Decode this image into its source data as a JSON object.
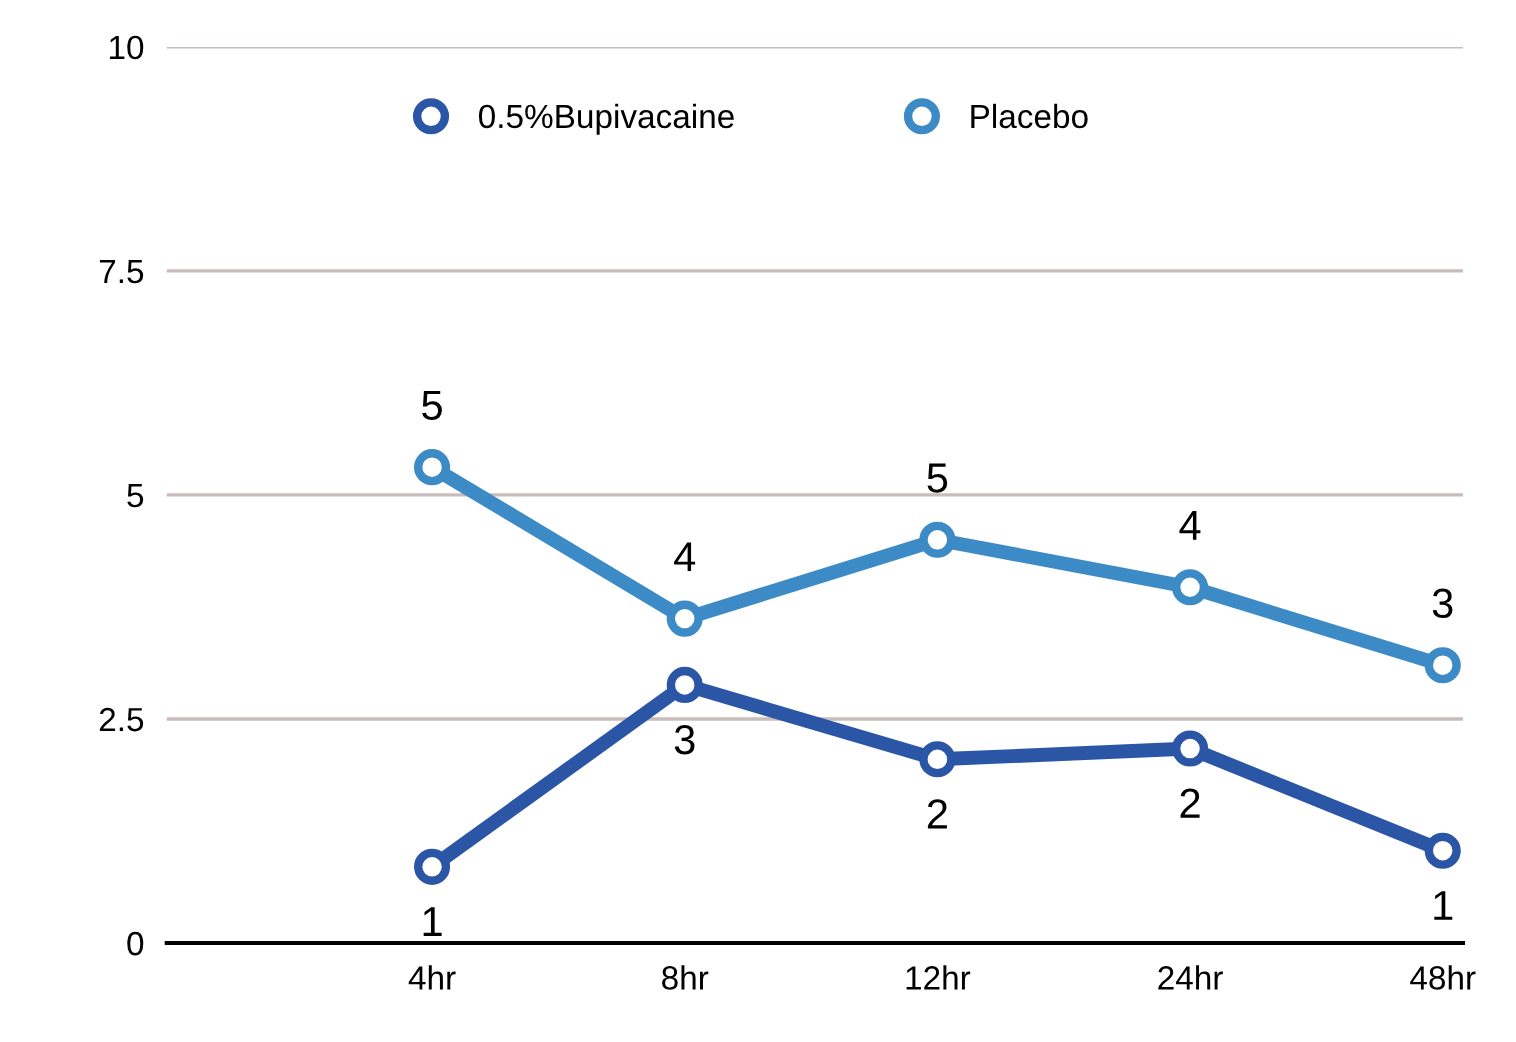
{
  "chart_data": {
    "type": "line",
    "categories": [
      "4hr",
      "8hr",
      "12hr",
      "24hr",
      "48hr"
    ],
    "series": [
      {
        "name": "0.5%Bupivacaine",
        "color": "#2b55a5",
        "values": [
          0.85,
          2.88,
          2.05,
          2.17,
          1.03
        ],
        "value_labels": [
          "1",
          "3",
          "2",
          "2",
          "1"
        ]
      },
      {
        "name": "Placebo",
        "color": "#3c8bc6",
        "values": [
          5.31,
          3.62,
          4.5,
          3.97,
          3.1
        ],
        "value_labels": [
          "5",
          "4",
          "5",
          "4",
          "3"
        ]
      }
    ],
    "ylim": [
      0,
      10
    ],
    "yticks": [
      0,
      2.5,
      5,
      7.5,
      10
    ],
    "grid": "y",
    "legend": "top",
    "marker": "circle",
    "line_style": "solid"
  }
}
